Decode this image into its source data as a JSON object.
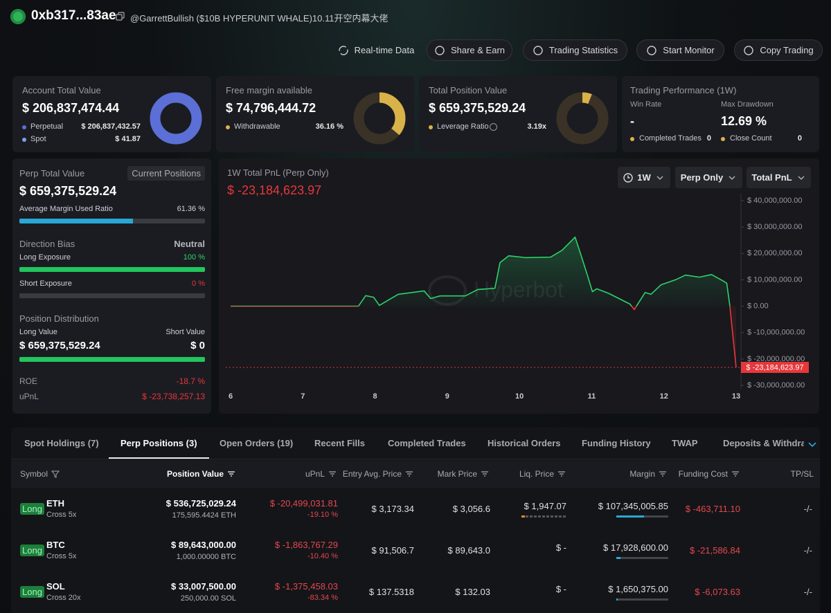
{
  "header": {
    "address": "0xb317...83ae",
    "tag": "@GarrettBullish ($10B HYPERUNIT WHALE)10.11开空内幕大佬"
  },
  "actions": [
    "Real-time Data",
    "Share & Earn",
    "Trading Statistics",
    "Start Monitor",
    "Copy Trading"
  ],
  "cards": {
    "account": {
      "title": "Account Total Value",
      "value": "$ 206,837,474.44",
      "donut": 100,
      "rows": [
        [
          "Perpetual",
          "$ 206,837,432.57"
        ],
        [
          "Spot",
          "$ 41.87"
        ]
      ]
    },
    "margin": {
      "title": "Free margin available",
      "value": "$ 74,796,444.72",
      "donut": 36.16,
      "rows": [
        [
          "Withdrawable",
          "36.16 %"
        ]
      ]
    },
    "position": {
      "title": "Total Position Value",
      "value": "$ 659,375,529.24",
      "donut": 6,
      "rows": [
        [
          "Leverage Ratio",
          "3.19x"
        ]
      ]
    },
    "performance": {
      "title": "Trading Performance (1W)",
      "win_label": "Win Rate",
      "win": "-",
      "dd_label": "Max Drawdown",
      "dd": "12.69 %",
      "rows": [
        [
          "Completed Trades",
          "0"
        ],
        [
          "Close Count",
          "0"
        ]
      ]
    }
  },
  "perp": {
    "title": "Perp Total Value",
    "badge": "Current Positions",
    "value": "$ 659,375,529.24",
    "margin_label": "Average Margin Used Ratio",
    "margin": "61.36 %",
    "margin_bar": 61.36,
    "bias_label": "Direction Bias",
    "bias": "Neutral",
    "long_label": "Long Exposure",
    "long": "100 %",
    "long_bar": 100,
    "short_label": "Short Exposure",
    "short": "0 %",
    "short_bar": 0,
    "dist_label": "Position Distribution",
    "long_value_label": "Long Value",
    "short_value_label": "Short Value",
    "long_value": "$ 659,375,529.24",
    "short_value": "$ 0",
    "dist_bar": 100,
    "roe_label": "ROE",
    "roe": "-18.7 %",
    "upnl_label": "uPnL",
    "upnl": "$ -23,738,257.13"
  },
  "filters": [
    "1W",
    "Perp Only",
    "Total PnL"
  ],
  "watermark": "Hyperbot",
  "chart_data": {
    "type": "line",
    "title": "1W Total PnL (Perp Only)",
    "subtitle": "$ -23,184,623.97",
    "x": [
      6,
      7.77,
      7.87,
      7.98,
      8.06,
      8.14,
      8.32,
      8.68,
      8.77,
      8.9,
      9.25,
      9.42,
      9.66,
      9.73,
      9.85,
      10.09,
      10.43,
      10.59,
      10.77,
      10.84,
      10.94,
      11.01,
      11.07,
      11.24,
      11.53,
      11.59,
      11.65,
      11.74,
      11.82,
      11.96,
      12.16,
      12.3,
      12.49,
      12.66,
      12.83,
      12.87,
      12.91,
      13
    ],
    "values": [
      0,
      0,
      4000000,
      3400000,
      300000,
      1600000,
      4500000,
      5800000,
      2900000,
      3900000,
      3900000,
      6300000,
      6800000,
      16500000,
      19100000,
      18400000,
      18600000,
      21200000,
      26200000,
      20400000,
      11800000,
      5500000,
      6600000,
      4800000,
      800000,
      -1300000,
      1300000,
      5200000,
      4500000,
      8100000,
      10000000,
      11800000,
      11000000,
      12000000,
      9400000,
      8700000,
      800000,
      -23184623.97
    ],
    "value_labels": [
      null,
      null,
      null,
      null,
      null,
      null,
      null,
      null,
      null,
      null,
      null,
      null,
      null,
      null,
      null,
      null,
      null,
      null,
      null,
      null,
      null,
      null,
      null,
      null,
      null,
      null,
      null,
      null,
      null,
      null,
      null,
      null,
      null,
      null,
      null,
      null,
      null,
      "$ -23,184,623.97"
    ],
    "color": "#2bd46a",
    "negative_color": "#e5383b",
    "xlim": [
      6,
      13
    ],
    "xticks": [
      6,
      7,
      8,
      9,
      10,
      11,
      12,
      13
    ],
    "ylim": [
      -30000000,
      40000000
    ],
    "yticks": [
      {
        "value": -30000000,
        "label": "$ -30,000,000.00"
      },
      {
        "value": -20000000,
        "label": "$ -20,000,000.00"
      },
      {
        "value": -10000000,
        "label": "$ -10,000,000.00"
      },
      {
        "value": 0,
        "label": "$ 0.00"
      },
      {
        "value": 10000000,
        "label": "$ 10,000,000.00"
      },
      {
        "value": 20000000,
        "label": "$ 20,000,000.00"
      },
      {
        "value": 30000000,
        "label": "$ 30,000,000.00"
      },
      {
        "value": 40000000,
        "label": "$ 40,000,000.00"
      }
    ],
    "grid": false
  },
  "tabs": {
    "items": [
      "Spot Holdings (7)",
      "Perp Positions (3)",
      "Open Orders (19)",
      "Recent Fills",
      "Completed Trades",
      "Historical Orders",
      "Funding History",
      "TWAP",
      "Deposits & Withdrawals"
    ],
    "active": 1
  },
  "table": {
    "headers": [
      "Symbol",
      "Position Value",
      "uPnL",
      "Entry Avg. Price",
      "Mark Price",
      "Liq. Price",
      "Margin",
      "Funding Cost",
      "TP/SL"
    ],
    "rows": [
      {
        "side": "Long",
        "coin": "ETH",
        "mode": "Cross 5x",
        "value": "$ 536,725,029.24",
        "size": "175,595.4424 ETH",
        "upnl": "$ -20,499,031.81",
        "upnl_pct": "-19.10 %",
        "entry": "$ 3,173.34",
        "mark": "$ 3,056.6",
        "liq": "$ 1,947.07",
        "liq_bar": 8,
        "margin": "$ 107,345,005.85",
        "margin_bar": 53,
        "funding": "$ -463,711.10",
        "tpsl": "-/-"
      },
      {
        "side": "Long",
        "coin": "BTC",
        "mode": "Cross 5x",
        "value": "$ 89,643,000.00",
        "size": "1,000.00000 BTC",
        "upnl": "$ -1,863,767.29",
        "upnl_pct": "-10.40 %",
        "entry": "$ 91,506.7",
        "mark": "$ 89,643.0",
        "liq": "$ -",
        "liq_bar": null,
        "margin": "$ 17,928,600.00",
        "margin_bar": 8,
        "funding": "$ -21,586.84",
        "tpsl": "-/-"
      },
      {
        "side": "Long",
        "coin": "SOL",
        "mode": "Cross 20x",
        "value": "$ 33,007,500.00",
        "size": "250,000.00 SOL",
        "upnl": "$ -1,375,458.03",
        "upnl_pct": "-83.34 %",
        "entry": "$ 137.5318",
        "mark": "$ 132.03",
        "liq": "$ -",
        "liq_bar": null,
        "margin": "$ 1,650,375.00",
        "margin_bar": 2,
        "funding": "$ -6,073.63",
        "tpsl": "-/-"
      }
    ]
  }
}
